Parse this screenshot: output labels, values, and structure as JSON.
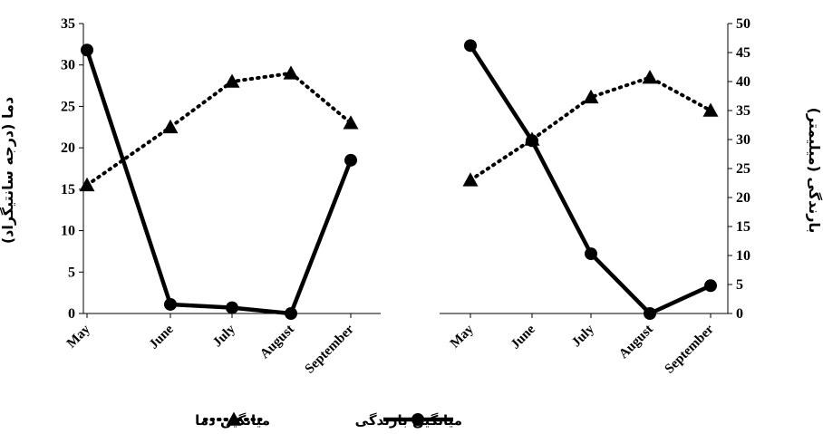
{
  "chart_data": {
    "type": "line",
    "categories": [
      "May",
      "June",
      "July",
      "August",
      "September"
    ],
    "y_left": {
      "label": "دما (درجه سانتیگراد)",
      "min": 0,
      "max": 35,
      "step": 5
    },
    "y_right": {
      "label": "بارندگی (میلیمتر)",
      "min": 0,
      "max": 50,
      "step": 5
    },
    "panels": [
      {
        "series": [
          {
            "name": "میانگین دما",
            "axis": "left",
            "style": "dotted",
            "marker": "triangle",
            "values": [
              15.5,
              22.5,
              28,
              29,
              23
            ]
          },
          {
            "name": "میانگین بارندگی",
            "axis": "left",
            "style": "solid",
            "marker": "circle",
            "values": [
              31.8,
              1.1,
              0.7,
              0,
              18.5
            ]
          }
        ]
      },
      {
        "series": [
          {
            "name": "میانگین دما",
            "axis": "right",
            "style": "dotted",
            "marker": "triangle",
            "values": [
              23,
              30,
              37.3,
              40.7,
              35
            ]
          },
          {
            "name": "میانگین بارندگی",
            "axis": "right",
            "style": "solid",
            "marker": "circle",
            "values": [
              46.2,
              29.8,
              10.3,
              0,
              4.8
            ]
          }
        ]
      }
    ],
    "legend": {
      "position": "bottom",
      "items": [
        {
          "label": "میانگین بارندگی",
          "style": "solid",
          "marker": "circle"
        },
        {
          "label": "میانگین دما",
          "style": "dotted",
          "marker": "triangle"
        }
      ]
    },
    "grid": false,
    "line_color": "#000000"
  }
}
